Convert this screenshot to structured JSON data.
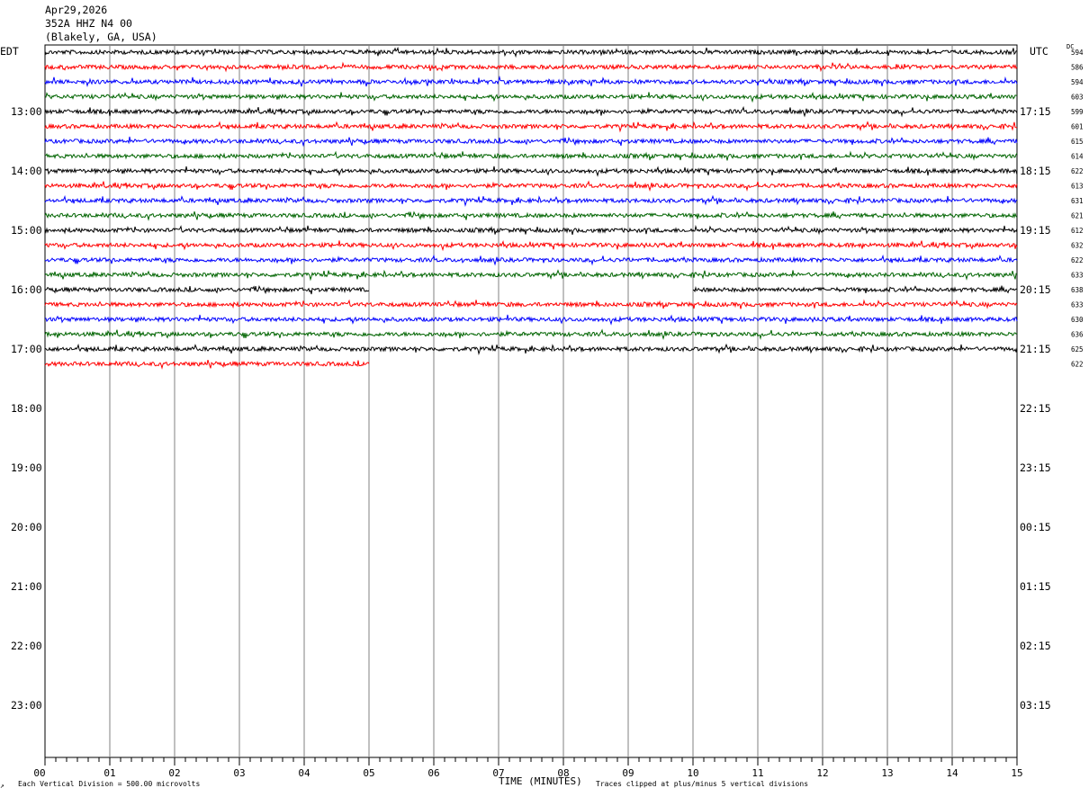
{
  "header": {
    "date": "Apr29,2026",
    "station": "352A HHZ N4 00",
    "location": "(Blakely, GA, USA)"
  },
  "left_label": "EDT",
  "right_label": "UTC",
  "dc_label": "DC",
  "footer": {
    "scale_note": "Each Vertical Division =  500.00 microvolts",
    "clip_note": "Traces clipped at plus/minus 5 vertical divisions",
    "corner_mark": "↗"
  },
  "colors": {
    "black": "#000000",
    "red": "#ff0000",
    "blue": "#0000ff",
    "green": "#006400",
    "grid": "#808080"
  },
  "chart_data": {
    "type": "line",
    "title": "",
    "xlabel": "TIME (MINUTES)",
    "ylabel": "",
    "xlim": [
      0,
      15
    ],
    "x_ticks": [
      "00",
      "01",
      "02",
      "03",
      "04",
      "05",
      "06",
      "07",
      "08",
      "09",
      "10",
      "11",
      "12",
      "13",
      "14",
      "15"
    ],
    "left_hour_labels": [
      {
        "row": 4,
        "label": "13:00"
      },
      {
        "row": 8,
        "label": "14:00"
      },
      {
        "row": 12,
        "label": "15:00"
      },
      {
        "row": 16,
        "label": "16:00"
      },
      {
        "row": 20,
        "label": "17:00"
      },
      {
        "row": 24,
        "label": "18:00"
      },
      {
        "row": 28,
        "label": "19:00"
      },
      {
        "row": 32,
        "label": "20:00"
      },
      {
        "row": 36,
        "label": "21:00"
      },
      {
        "row": 40,
        "label": "22:00"
      },
      {
        "row": 44,
        "label": "23:00"
      }
    ],
    "right_hour_labels": [
      {
        "row": 4,
        "label": "17:15"
      },
      {
        "row": 8,
        "label": "18:15"
      },
      {
        "row": 12,
        "label": "19:15"
      },
      {
        "row": 16,
        "label": "20:15"
      },
      {
        "row": 20,
        "label": "21:15"
      },
      {
        "row": 24,
        "label": "22:15"
      },
      {
        "row": 28,
        "label": "23:15"
      },
      {
        "row": 32,
        "label": "00:15"
      },
      {
        "row": 36,
        "label": "01:15"
      },
      {
        "row": 40,
        "label": "02:15"
      },
      {
        "row": 44,
        "label": "03:15"
      }
    ],
    "color_cycle": [
      "black",
      "red",
      "blue",
      "green"
    ],
    "traces": [
      {
        "dc": "594",
        "start": 0,
        "end": 15
      },
      {
        "dc": "586",
        "start": 0,
        "end": 15
      },
      {
        "dc": "594",
        "start": 0,
        "end": 15
      },
      {
        "dc": "603",
        "start": 0,
        "end": 15
      },
      {
        "dc": "599",
        "start": 0,
        "end": 15
      },
      {
        "dc": "601",
        "start": 0,
        "end": 15
      },
      {
        "dc": "615",
        "start": 0,
        "end": 15
      },
      {
        "dc": "614",
        "start": 0,
        "end": 15
      },
      {
        "dc": "622",
        "start": 0,
        "end": 15
      },
      {
        "dc": "613",
        "start": 0,
        "end": 15
      },
      {
        "dc": "631",
        "start": 0,
        "end": 15
      },
      {
        "dc": "621",
        "start": 0,
        "end": 15
      },
      {
        "dc": "612",
        "start": 0,
        "end": 15
      },
      {
        "dc": "632",
        "start": 0,
        "end": 15
      },
      {
        "dc": "622",
        "start": 0,
        "end": 15
      },
      {
        "dc": "633",
        "start": 0,
        "end": 15
      },
      {
        "dc": "638",
        "start": 0,
        "end": 15,
        "gap": [
          5,
          10
        ]
      },
      {
        "dc": "633",
        "start": 0,
        "end": 15
      },
      {
        "dc": "630",
        "start": 0,
        "end": 15
      },
      {
        "dc": "636",
        "start": 0,
        "end": 15
      },
      {
        "dc": "625",
        "start": 0,
        "end": 15
      },
      {
        "dc": "622",
        "start": 0,
        "end": 5
      }
    ]
  }
}
